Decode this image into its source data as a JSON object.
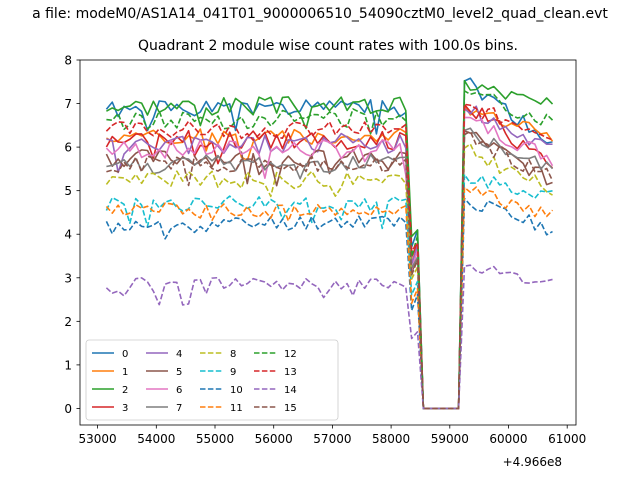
{
  "figure": {
    "suptitle": "a file: modeM0/AS1A14_041T01_9000006510_54090cztM0_level2_quad_clean.evt",
    "title": "Quadrant 2 module wise count rates with 100.0s bins."
  },
  "chart_data": {
    "type": "line",
    "title": "Quadrant 2 module wise count rates with 100.0s bins.",
    "xlabel": "",
    "ylabel": "",
    "x_offset_label": "+4.966e8",
    "xlim": [
      52700,
      61150
    ],
    "ylim": [
      -0.38,
      8.0
    ],
    "xticks": [
      53000,
      54000,
      55000,
      56000,
      57000,
      58000,
      59000,
      60000,
      61000
    ],
    "xtick_labels": [
      "53000",
      "54000",
      "55000",
      "56000",
      "57000",
      "58000",
      "59000",
      "60000",
      "61000"
    ],
    "yticks": [
      0,
      1,
      2,
      3,
      4,
      5,
      6,
      7,
      8
    ],
    "ytick_labels": [
      "0",
      "1",
      "2",
      "3",
      "4",
      "5",
      "6",
      "7",
      "8"
    ],
    "grid": false,
    "legend": {
      "placement": "lower-left",
      "columns": 5
    },
    "x_start": 53150,
    "x_step": 100,
    "n_points": 77,
    "gap": {
      "drop_start_x": 58350,
      "drop_end_x": 58550,
      "rise_start_x": 59150,
      "rise_end_x": 59350,
      "zero_from_x": 58550,
      "zero_to_x": 59150
    },
    "series": [
      {
        "name": "0",
        "color": "#1f77b4",
        "dash": "solid",
        "base_pre": 6.85,
        "slope": 0.05,
        "noise": 0.2,
        "post_start": 7.45,
        "post_end": 6.1,
        "seed": 1
      },
      {
        "name": "1",
        "color": "#ff7f0e",
        "dash": "solid",
        "base_pre": 6.25,
        "slope": 0.0,
        "noise": 0.18,
        "post_start": 6.9,
        "post_end": 6.25,
        "seed": 2
      },
      {
        "name": "2",
        "color": "#2ca02c",
        "dash": "solid",
        "base_pre": 6.95,
        "slope": 0.0,
        "noise": 0.22,
        "post_start": 7.45,
        "post_end": 6.9,
        "seed": 3
      },
      {
        "name": "3",
        "color": "#d62728",
        "dash": "solid",
        "base_pre": 6.2,
        "slope": -0.05,
        "noise": 0.22,
        "post_start": 6.9,
        "post_end": 5.6,
        "seed": 4
      },
      {
        "name": "4",
        "color": "#9467bd",
        "dash": "solid",
        "base_pre": 6.0,
        "slope": 0.1,
        "noise": 0.24,
        "post_start": 6.8,
        "post_end": 5.9,
        "seed": 5
      },
      {
        "name": "5",
        "color": "#8c564b",
        "dash": "solid",
        "base_pre": 5.75,
        "slope": 0.0,
        "noise": 0.2,
        "post_start": 6.3,
        "post_end": 5.2,
        "seed": 6
      },
      {
        "name": "6",
        "color": "#e377c2",
        "dash": "solid",
        "base_pre": 5.95,
        "slope": 0.0,
        "noise": 0.22,
        "post_start": 6.6,
        "post_end": 5.75,
        "seed": 7
      },
      {
        "name": "7",
        "color": "#7f7f7f",
        "dash": "solid",
        "base_pre": 5.6,
        "slope": 0.05,
        "noise": 0.22,
        "post_start": 6.3,
        "post_end": 5.45,
        "seed": 8
      },
      {
        "name": "8",
        "color": "#bcbd22",
        "dash": "dashed",
        "base_pre": 5.25,
        "slope": 0.0,
        "noise": 0.2,
        "post_start": 5.9,
        "post_end": 5.0,
        "seed": 9
      },
      {
        "name": "9",
        "color": "#17becf",
        "dash": "dashed",
        "base_pre": 4.7,
        "slope": 0.0,
        "noise": 0.18,
        "post_start": 5.3,
        "post_end": 4.9,
        "seed": 10
      },
      {
        "name": "10",
        "color": "#1f77b4",
        "dash": "dashed",
        "base_pre": 4.15,
        "slope": 0.2,
        "noise": 0.18,
        "post_start": 4.75,
        "post_end": 4.1,
        "seed": 11
      },
      {
        "name": "11",
        "color": "#ff7f0e",
        "dash": "dashed",
        "base_pre": 4.55,
        "slope": 0.0,
        "noise": 0.18,
        "post_start": 5.0,
        "post_end": 4.4,
        "seed": 12
      },
      {
        "name": "12",
        "color": "#2ca02c",
        "dash": "dashed",
        "base_pre": 6.6,
        "slope": 0.1,
        "noise": 0.22,
        "post_start": 7.2,
        "post_end": 6.6,
        "seed": 13
      },
      {
        "name": "13",
        "color": "#d62728",
        "dash": "dashed",
        "base_pre": 6.4,
        "slope": 0.0,
        "noise": 0.2,
        "post_start": 6.9,
        "post_end": 6.3,
        "seed": 14
      },
      {
        "name": "14",
        "color": "#9467bd",
        "dash": "dashed",
        "base_pre": 2.85,
        "slope": 0.0,
        "noise": 0.16,
        "post_start": 3.2,
        "post_end": 2.9,
        "seed": 15
      },
      {
        "name": "15",
        "color": "#8c564b",
        "dash": "dashed",
        "base_pre": 5.6,
        "slope": 0.0,
        "noise": 0.2,
        "post_start": 6.2,
        "post_end": 5.3,
        "seed": 16
      }
    ]
  }
}
